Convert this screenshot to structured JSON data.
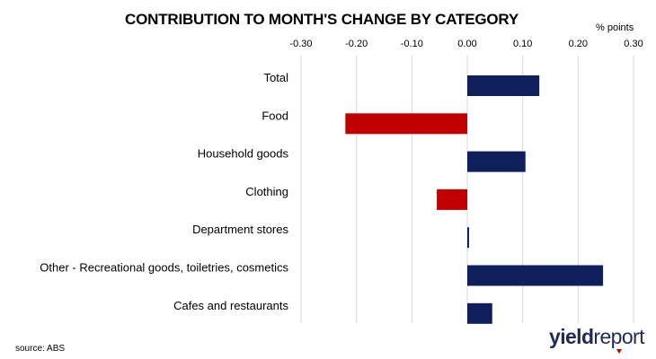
{
  "chart_data": {
    "type": "bar",
    "orientation": "horizontal",
    "title": "CONTRIBUTION TO MONTH'S CHANGE BY CATEGORY",
    "unit_label": "% points",
    "categories": [
      "Total",
      "Food",
      "Household goods",
      "Clothing",
      "Department stores",
      "Other - Recreational goods, toiletries, cosmetics",
      "Cafes and restaurants"
    ],
    "values": [
      0.13,
      -0.22,
      0.105,
      -0.055,
      0.003,
      0.245,
      0.045
    ],
    "xlim": [
      -0.3,
      0.3
    ],
    "x_ticks": [
      "-0.30",
      "-0.20",
      "-0.10",
      "0.00",
      "0.10",
      "0.20",
      "0.30"
    ],
    "x_tick_values": [
      -0.3,
      -0.2,
      -0.1,
      0.0,
      0.1,
      0.2,
      0.3
    ],
    "x_axis_position": "top",
    "grid": true,
    "colors": {
      "positive": "#0e1f5b",
      "negative": "#c00000",
      "grid": "#d9d9d9"
    }
  },
  "footer": {
    "source": "source: ABS",
    "logo_part1": "yield",
    "logo_part2": "report"
  }
}
